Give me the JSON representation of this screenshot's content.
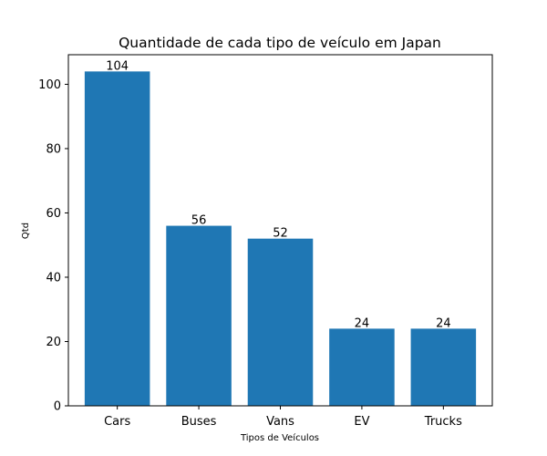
{
  "chart_data": {
    "type": "bar",
    "title": "Quantidade de cada tipo de veículo em Japan",
    "xlabel": "Tipos de Veículos",
    "ylabel": "Qtd",
    "categories": [
      "Cars",
      "Buses",
      "Vans",
      "EV",
      "Trucks"
    ],
    "values": [
      104,
      56,
      52,
      24,
      24
    ],
    "ylim": [
      0,
      109.2
    ],
    "yticks": [
      0,
      20,
      40,
      60,
      80,
      100
    ],
    "grid": false,
    "bar_color": "#1f77b4",
    "show_data_labels": true
  }
}
